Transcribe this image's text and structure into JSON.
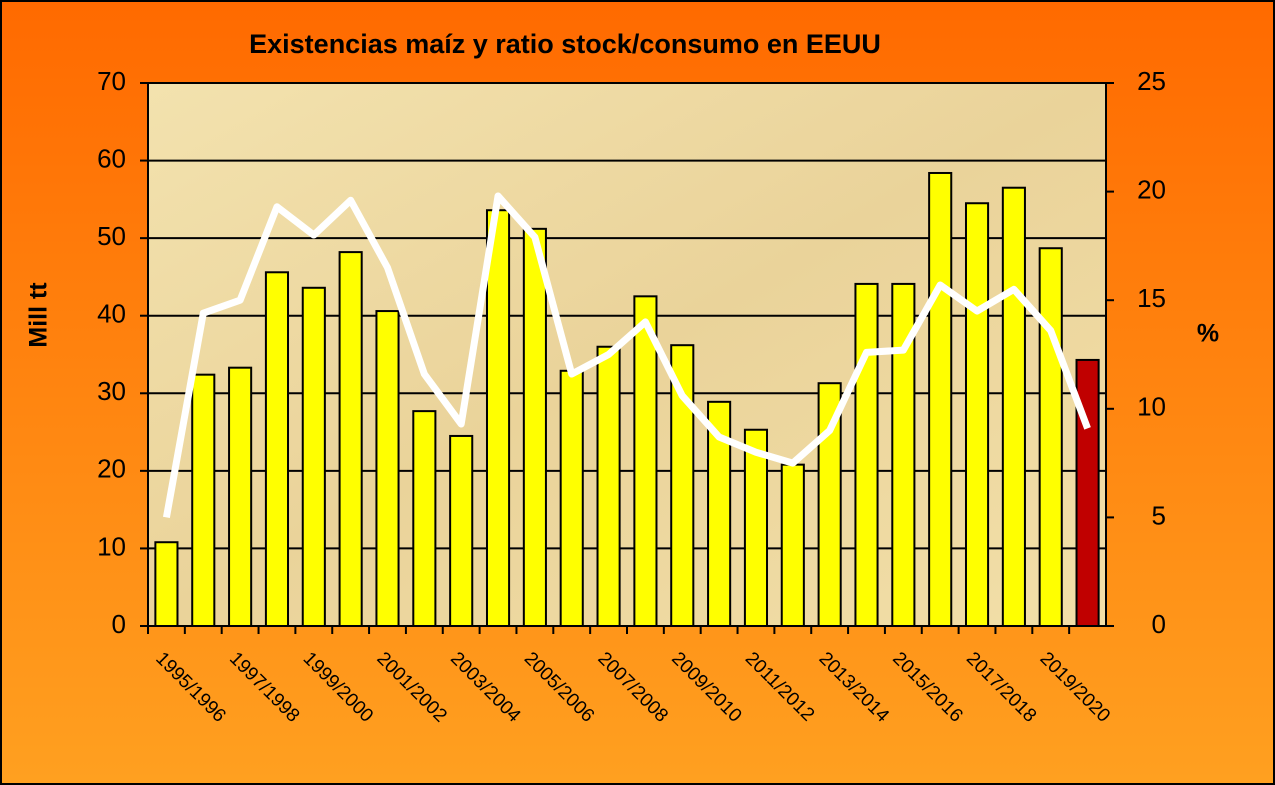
{
  "chart_data": {
    "type": "bar+line",
    "title": "Existencias maíz y ratio stock/consumo en EEUU",
    "ylabel": "Mill tt",
    "y2label": "%",
    "categories": [
      "1995/1996",
      null,
      "1997/1998",
      null,
      "1999/2000",
      null,
      "2001/2002",
      null,
      "2003/2004",
      null,
      "2005/2006",
      null,
      "2007/2008",
      null,
      "2009/2010",
      null,
      "2011/2012",
      null,
      "2013/2014",
      null,
      "2015/2016",
      null,
      "2017/2018",
      null,
      "2019/2020",
      null
    ],
    "series": [
      {
        "type": "bar",
        "axis": "y",
        "color": "#ffff00",
        "colors": [
          "#ffff00",
          "#ffff00",
          "#ffff00",
          "#ffff00",
          "#ffff00",
          "#ffff00",
          "#ffff00",
          "#ffff00",
          "#ffff00",
          "#ffff00",
          "#ffff00",
          "#ffff00",
          "#ffff00",
          "#ffff00",
          "#ffff00",
          "#ffff00",
          "#ffff00",
          "#ffff00",
          "#ffff00",
          "#ffff00",
          "#ffff00",
          "#ffff00",
          "#ffff00",
          "#ffff00",
          "#ffff00",
          "#c00000"
        ],
        "values": [
          10.8,
          32.4,
          33.3,
          45.6,
          43.6,
          48.2,
          40.6,
          27.7,
          24.5,
          53.6,
          51.2,
          32.9,
          36.0,
          42.5,
          36.2,
          28.9,
          25.3,
          20.8,
          31.3,
          44.1,
          44.1,
          58.4,
          54.5,
          56.5,
          48.7,
          34.3
        ]
      },
      {
        "type": "line",
        "axis": "y2",
        "color": "#ffffff",
        "values": [
          5.0,
          14.4,
          15.0,
          19.3,
          18.0,
          19.6,
          16.5,
          11.6,
          9.3,
          19.8,
          17.9,
          11.6,
          12.5,
          14.0,
          10.6,
          8.7,
          8.0,
          7.5,
          9.0,
          12.6,
          12.7,
          15.7,
          14.5,
          15.5,
          13.6,
          9.1
        ]
      }
    ],
    "ylim": [
      0,
      70
    ],
    "yticks": [
      0,
      10,
      20,
      30,
      40,
      50,
      60,
      70
    ],
    "y2lim": [
      0,
      25
    ],
    "y2ticks": [
      0,
      5,
      10,
      15,
      20,
      25
    ],
    "grid": true
  }
}
